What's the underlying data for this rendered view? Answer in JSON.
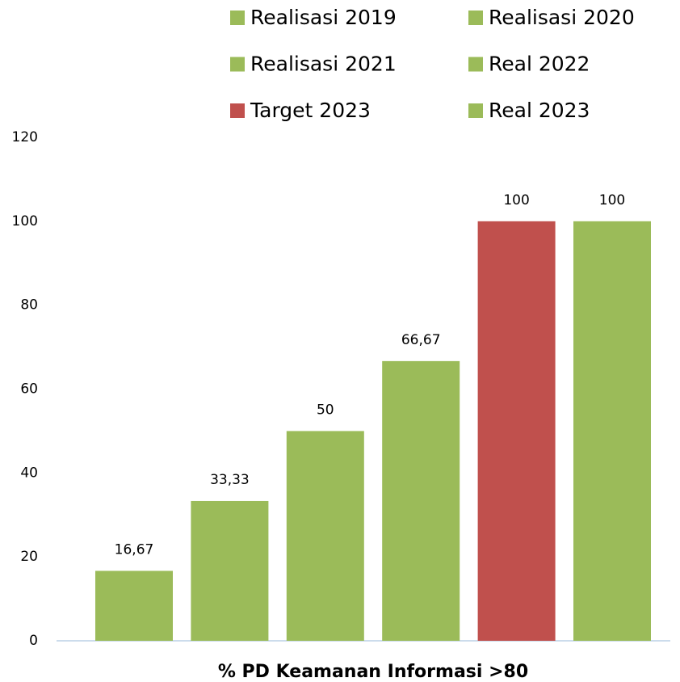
{
  "chart_data": {
    "type": "bar",
    "categories": [
      "% PD Keamanan Informasi >80"
    ],
    "series": [
      {
        "name": "Realisasi 2019",
        "color": "#9bbb59",
        "values": [
          16.67
        ],
        "value_labels": [
          "16,67"
        ]
      },
      {
        "name": "Realisasi 2020",
        "color": "#9bbb59",
        "values": [
          33.33
        ],
        "value_labels": [
          "33,33"
        ]
      },
      {
        "name": "Realisasi 2021",
        "color": "#9bbb59",
        "values": [
          50
        ]
      },
      {
        "name": "Real 2022",
        "color": "#9bbb59",
        "values": [
          66.67
        ],
        "value_labels": [
          "66,67"
        ]
      },
      {
        "name": "Target 2023",
        "color": "#c0504d",
        "values": [
          100
        ]
      },
      {
        "name": "Real 2023",
        "color": "#9bbb59",
        "values": [
          100
        ]
      }
    ],
    "ylim": [
      0,
      120
    ],
    "yticks": [
      0,
      20,
      40,
      60,
      80,
      100,
      120
    ],
    "grid": false
  }
}
